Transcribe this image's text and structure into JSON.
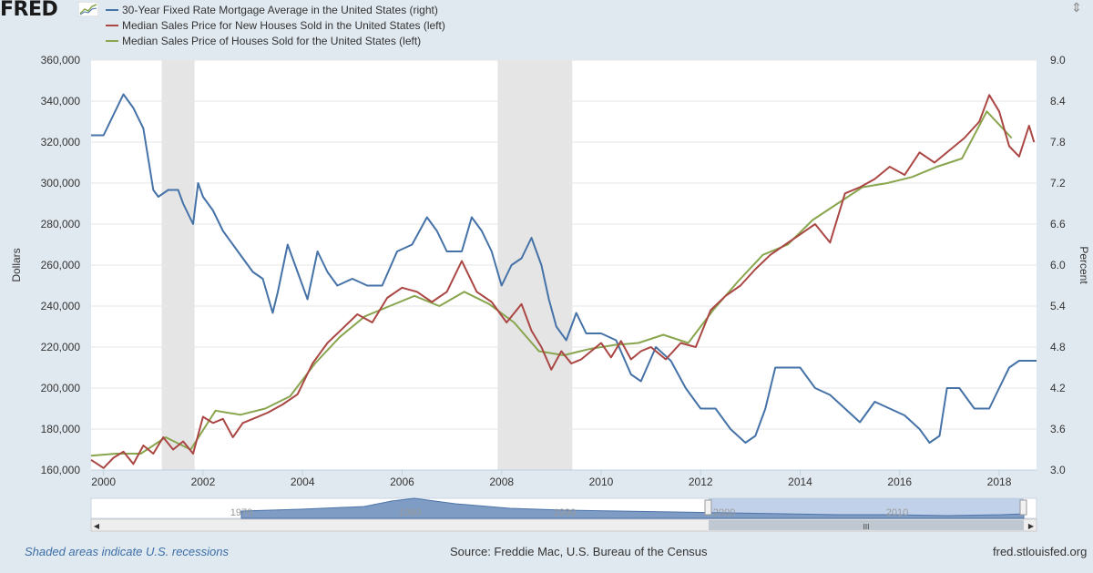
{
  "logo": {
    "text": "FRED",
    "icon": "fred-line-chart-icon"
  },
  "footer": {
    "recession_note": "Shaded areas indicate U.S. recessions",
    "source": "Source: Freddie Mac, U.S. Bureau of the Census",
    "site": "fred.stlouisfed.org"
  },
  "colors": {
    "mortgage": "#4572a7",
    "new_houses": "#aa4643",
    "all_houses": "#89a54e",
    "recession": "#e5e5e5",
    "background": "#e1e9f0"
  },
  "navigator": {
    "labels": [
      "1970",
      "1980",
      "1990",
      "2000",
      "2010"
    ]
  },
  "chart_data": {
    "type": "line",
    "legend_placement": "top-left",
    "xlim": [
      1999.75,
      2018.75
    ],
    "x_ticks": [
      "2000",
      "2002",
      "2004",
      "2006",
      "2008",
      "2010",
      "2012",
      "2014",
      "2016",
      "2018"
    ],
    "ylabel_left": "Dollars",
    "ylabel_right": "Percent",
    "ylim_left": [
      160000,
      360000
    ],
    "ylim_right": [
      3.0,
      9.0
    ],
    "y_ticks_left": [
      "160,000",
      "180,000",
      "200,000",
      "220,000",
      "240,000",
      "260,000",
      "280,000",
      "300,000",
      "320,000",
      "340,000",
      "360,000"
    ],
    "y_ticks_right": [
      "3.0",
      "3.6",
      "4.2",
      "4.8",
      "5.4",
      "6.0",
      "6.6",
      "7.2",
      "7.8",
      "8.4",
      "9.0"
    ],
    "grid": "horizontal",
    "recessions": [
      [
        2001.17,
        2001.83
      ],
      [
        2007.92,
        2009.42
      ]
    ],
    "series": [
      {
        "name": "30-Year Fixed Rate Mortgage Average in the United States (right)",
        "axis": "right",
        "x": [
          1999.75,
          2000.0,
          2000.2,
          2000.4,
          2000.6,
          2000.8,
          2001.0,
          2001.1,
          2001.3,
          2001.5,
          2001.6,
          2001.8,
          2001.9,
          2002.0,
          2002.2,
          2002.4,
          2002.6,
          2002.8,
          2003.0,
          2003.2,
          2003.4,
          2003.5,
          2003.7,
          2003.9,
          2004.1,
          2004.3,
          2004.5,
          2004.7,
          2005.0,
          2005.3,
          2005.6,
          2005.9,
          2006.2,
          2006.5,
          2006.7,
          2006.9,
          2007.2,
          2007.4,
          2007.6,
          2007.8,
          2008.0,
          2008.2,
          2008.4,
          2008.6,
          2008.8,
          2008.95,
          2009.1,
          2009.3,
          2009.5,
          2009.7,
          2010.0,
          2010.3,
          2010.6,
          2010.8,
          2011.1,
          2011.4,
          2011.7,
          2012.0,
          2012.3,
          2012.6,
          2012.9,
          2013.1,
          2013.3,
          2013.5,
          2013.7,
          2014.0,
          2014.3,
          2014.6,
          2014.9,
          2015.2,
          2015.5,
          2015.8,
          2016.1,
          2016.4,
          2016.6,
          2016.8,
          2016.95,
          2017.2,
          2017.5,
          2017.8,
          2018.0,
          2018.2,
          2018.4,
          2018.6,
          2018.75
        ],
        "y": [
          7.9,
          7.9,
          8.2,
          8.5,
          8.3,
          8.0,
          7.1,
          7.0,
          7.1,
          7.1,
          6.9,
          6.6,
          7.2,
          7.0,
          6.8,
          6.5,
          6.3,
          6.1,
          5.9,
          5.8,
          5.3,
          5.6,
          6.3,
          5.9,
          5.5,
          6.2,
          5.9,
          5.7,
          5.8,
          5.7,
          5.7,
          6.2,
          6.3,
          6.7,
          6.5,
          6.2,
          6.2,
          6.7,
          6.5,
          6.2,
          5.7,
          6.0,
          6.1,
          6.4,
          6.0,
          5.5,
          5.1,
          4.9,
          5.3,
          5.0,
          5.0,
          4.9,
          4.4,
          4.3,
          4.8,
          4.6,
          4.2,
          3.9,
          3.9,
          3.6,
          3.4,
          3.5,
          3.9,
          4.5,
          4.5,
          4.5,
          4.2,
          4.1,
          3.9,
          3.7,
          4.0,
          3.9,
          3.8,
          3.6,
          3.4,
          3.5,
          4.2,
          4.2,
          3.9,
          3.9,
          4.2,
          4.5,
          4.6,
          4.6,
          4.6
        ]
      },
      {
        "name": "Median Sales Price for New Houses Sold in the United States (left)",
        "axis": "left",
        "x": [
          1999.75,
          2000.0,
          2000.2,
          2000.4,
          2000.6,
          2000.8,
          2001.0,
          2001.2,
          2001.4,
          2001.6,
          2001.8,
          2002.0,
          2002.2,
          2002.4,
          2002.6,
          2002.8,
          2003.0,
          2003.3,
          2003.6,
          2003.9,
          2004.2,
          2004.5,
          2004.8,
          2005.1,
          2005.4,
          2005.7,
          2006.0,
          2006.3,
          2006.6,
          2006.9,
          2007.2,
          2007.5,
          2007.8,
          2008.1,
          2008.4,
          2008.6,
          2008.8,
          2009.0,
          2009.2,
          2009.4,
          2009.6,
          2009.8,
          2010.0,
          2010.2,
          2010.4,
          2010.6,
          2010.8,
          2011.0,
          2011.3,
          2011.6,
          2011.9,
          2012.2,
          2012.5,
          2012.8,
          2013.1,
          2013.4,
          2013.7,
          2014.0,
          2014.3,
          2014.6,
          2014.9,
          2015.2,
          2015.5,
          2015.8,
          2016.1,
          2016.4,
          2016.7,
          2017.0,
          2017.3,
          2017.6,
          2017.8,
          2018.0,
          2018.2,
          2018.4,
          2018.6,
          2018.7
        ],
        "y": [
          165000,
          161000,
          166000,
          169000,
          163000,
          172000,
          168000,
          176000,
          170000,
          174000,
          168000,
          186000,
          183000,
          185000,
          176000,
          183000,
          185000,
          188000,
          192000,
          197000,
          212000,
          222000,
          229000,
          236000,
          232000,
          244000,
          249000,
          247000,
          242000,
          247000,
          262000,
          247000,
          242000,
          232000,
          241000,
          228000,
          220000,
          209000,
          218000,
          212000,
          214000,
          218000,
          222000,
          215000,
          223000,
          214000,
          218000,
          220000,
          214000,
          222000,
          220000,
          238000,
          245000,
          250000,
          258000,
          265000,
          270000,
          275000,
          280000,
          271000,
          295000,
          298000,
          302000,
          308000,
          304000,
          315000,
          310000,
          316000,
          322000,
          330000,
          343000,
          335000,
          318000,
          313000,
          328000,
          320000
        ]
      },
      {
        "name": "Median Sales Price of Houses Sold for the United States (left)",
        "axis": "left",
        "x": [
          1999.75,
          2000.25,
          2000.75,
          2001.25,
          2001.75,
          2002.25,
          2002.75,
          2003.25,
          2003.75,
          2004.25,
          2004.75,
          2005.25,
          2005.75,
          2006.25,
          2006.75,
          2007.25,
          2007.75,
          2008.25,
          2008.75,
          2009.25,
          2009.75,
          2010.25,
          2010.75,
          2011.25,
          2011.75,
          2012.25,
          2012.75,
          2013.25,
          2013.75,
          2014.25,
          2014.75,
          2015.25,
          2015.75,
          2016.25,
          2016.75,
          2017.25,
          2017.75,
          2018.25
        ],
        "y": [
          167000,
          168000,
          168000,
          176000,
          170000,
          189000,
          187000,
          190000,
          196000,
          212000,
          225000,
          235000,
          240000,
          245000,
          240000,
          247000,
          241000,
          232000,
          218000,
          216000,
          219000,
          221000,
          222000,
          226000,
          222000,
          238000,
          252000,
          265000,
          270000,
          282000,
          290000,
          298000,
          300000,
          303000,
          308000,
          312000,
          335000,
          322000
        ]
      }
    ]
  }
}
